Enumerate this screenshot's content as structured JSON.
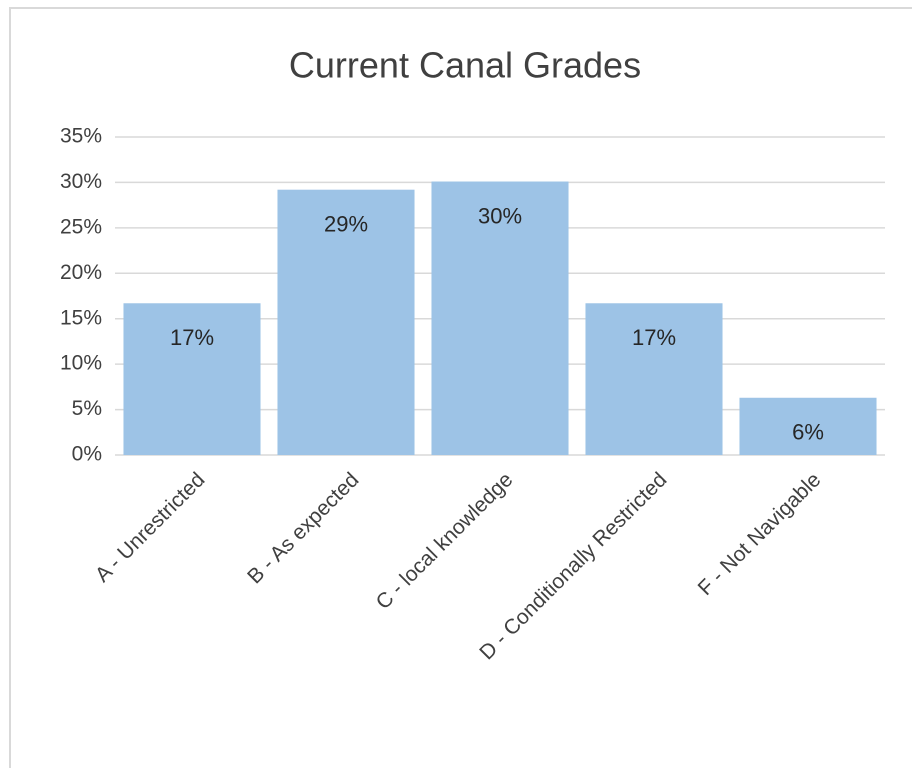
{
  "chart_data": {
    "type": "bar",
    "title": "Current Canal Grades",
    "categories": [
      "A - Unrestricted",
      "B - As expected",
      "C - local knowledge",
      "D - Conditionally Restricted",
      "F - Not Navigable"
    ],
    "values": [
      16.7,
      29.2,
      30.1,
      16.7,
      6.3
    ],
    "value_labels": [
      "17%",
      "29%",
      "30%",
      "17%",
      "6%"
    ],
    "color": "#9dc3e6",
    "ylim": [
      0,
      35
    ],
    "yticks": [
      {
        "value": 0,
        "label": "0%"
      },
      {
        "value": 5,
        "label": "5%"
      },
      {
        "value": 10,
        "label": "10%"
      },
      {
        "value": 15,
        "label": "15%"
      },
      {
        "value": 20,
        "label": "20%"
      },
      {
        "value": 25,
        "label": "25%"
      },
      {
        "value": 30,
        "label": "30%"
      },
      {
        "value": 35,
        "label": "35%"
      }
    ],
    "grid": true
  }
}
